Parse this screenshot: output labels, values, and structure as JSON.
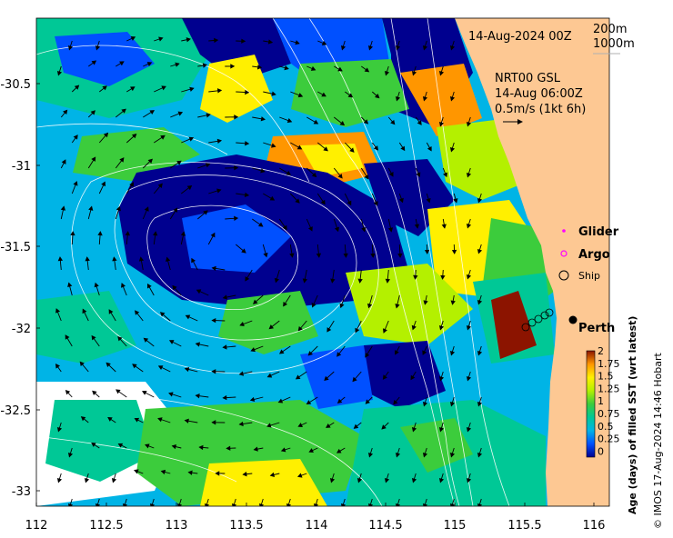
{
  "map": {
    "date_label": "14-Aug-2024 00Z",
    "contour_legend": [
      "200m",
      "1000m"
    ],
    "current_info": [
      "NRT00 GSL",
      "14-Aug 06:00Z",
      "0.5m/s (1kt 6h)"
    ],
    "legend": {
      "glider": "Glider",
      "argo": "Argo",
      "ship": "Ship"
    },
    "city": "Perth",
    "x_ticks": [
      "112",
      "112.5",
      "113",
      "113.5",
      "114",
      "114.5",
      "115",
      "115.5",
      "116"
    ],
    "y_ticks": [
      "-30.5",
      "-31",
      "-31.5",
      "-32",
      "-32.5",
      "-33"
    ],
    "colorbar": {
      "label": "Age (days) of filled SST (wrt latest)",
      "ticks": [
        "2",
        "1.75",
        "1.5",
        "1.25",
        "1",
        "0.75",
        "0.5",
        "0.25",
        "0"
      ]
    },
    "credit": "© IMOS 17-Aug-2024 14:46 Hobart",
    "colors": {
      "land": "#fdc893",
      "age_0": "#00008f",
      "age_0_25": "#0050ff",
      "age_0_5": "#00b4e6",
      "age_0_75": "#00c896",
      "age_1": "#3ccc3c",
      "age_1_25": "#b4f000",
      "age_1_5": "#fff000",
      "age_1_75": "#ff9600",
      "age_2": "#8c1400"
    }
  }
}
